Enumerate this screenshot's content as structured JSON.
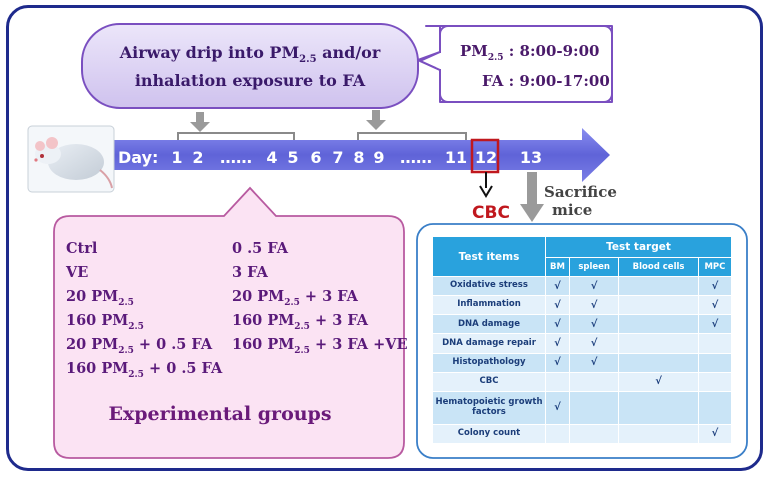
{
  "top_bubble": {
    "line1": "Airway drip into PM",
    "line1_sub": "2.5",
    "line1_tail": " and/or",
    "line2": "inhalation exposure to FA"
  },
  "schedule": {
    "pm_label": "PM",
    "pm_sub": "2.5",
    "pm_time": " : 8:00-9:00",
    "fa_label": "FA",
    "fa_time": "  : 9:00-17:00"
  },
  "timeline": {
    "day_label": "Day:",
    "days": [
      "1",
      "2",
      "……",
      "4",
      "5",
      "6",
      "7",
      "8",
      "9",
      "……",
      "11",
      "12",
      "13"
    ]
  },
  "cbc_label": "CBC",
  "sacrifice_label": [
    "Sacrifice",
    "mice"
  ],
  "groups": {
    "left": [
      {
        "text": "Ctrl"
      },
      {
        "text": "VE"
      },
      {
        "text": "20 PM",
        "sub": "2.5",
        "tail": ""
      },
      {
        "text": "160 PM",
        "sub": "2.5",
        "tail": ""
      },
      {
        "text": "20 PM",
        "sub": "2.5",
        "tail": " + 0 .5 FA"
      },
      {
        "text": "160 PM",
        "sub": "2.5",
        "tail": " + 0 .5 FA"
      }
    ],
    "right": [
      {
        "text": "0 .5 FA"
      },
      {
        "text": "3  FA"
      },
      {
        "text": "20 PM",
        "sub": "2.5",
        "tail": " + 3 FA"
      },
      {
        "text": "160 PM",
        "sub": "2.5",
        "tail": " + 3 FA"
      },
      {
        "text": "160 PM",
        "sub": "2.5",
        "tail": " + 3 FA +VE"
      }
    ],
    "title": "Experimental groups"
  },
  "test_table": {
    "col_item": "Test items",
    "col_target": "Test target",
    "targets": [
      "BM",
      "spleen",
      "Blood cells",
      "MPC"
    ],
    "check_mark": "√",
    "rows": [
      {
        "item": "Oxidative stress",
        "checks": [
          true,
          true,
          false,
          true
        ]
      },
      {
        "item": "Inflammation",
        "checks": [
          true,
          true,
          false,
          true
        ]
      },
      {
        "item": "DNA damage",
        "checks": [
          true,
          true,
          false,
          true
        ]
      },
      {
        "item": "DNA damage repair",
        "checks": [
          true,
          true,
          false,
          false
        ]
      },
      {
        "item": "Histopathology",
        "checks": [
          true,
          true,
          false,
          false
        ]
      },
      {
        "item": "CBC",
        "checks": [
          false,
          false,
          true,
          false
        ]
      },
      {
        "item": "Hematopoietic growth factors",
        "checks": [
          true,
          false,
          false,
          false
        ]
      },
      {
        "item": "Colony count",
        "checks": [
          false,
          false,
          false,
          true
        ]
      }
    ]
  },
  "colors": {
    "frame": "#1e2a8c",
    "arrow": "#6a6ee0",
    "bubble_fill": "#dcd2f2",
    "bubble_stroke": "#7a4fc0",
    "text_purple": "#5a1a7a",
    "group_fill": "#fbe3f3",
    "group_stroke": "#b85aa0",
    "cbc_red": "#c0181e",
    "table_border": "#3a7fc8"
  }
}
